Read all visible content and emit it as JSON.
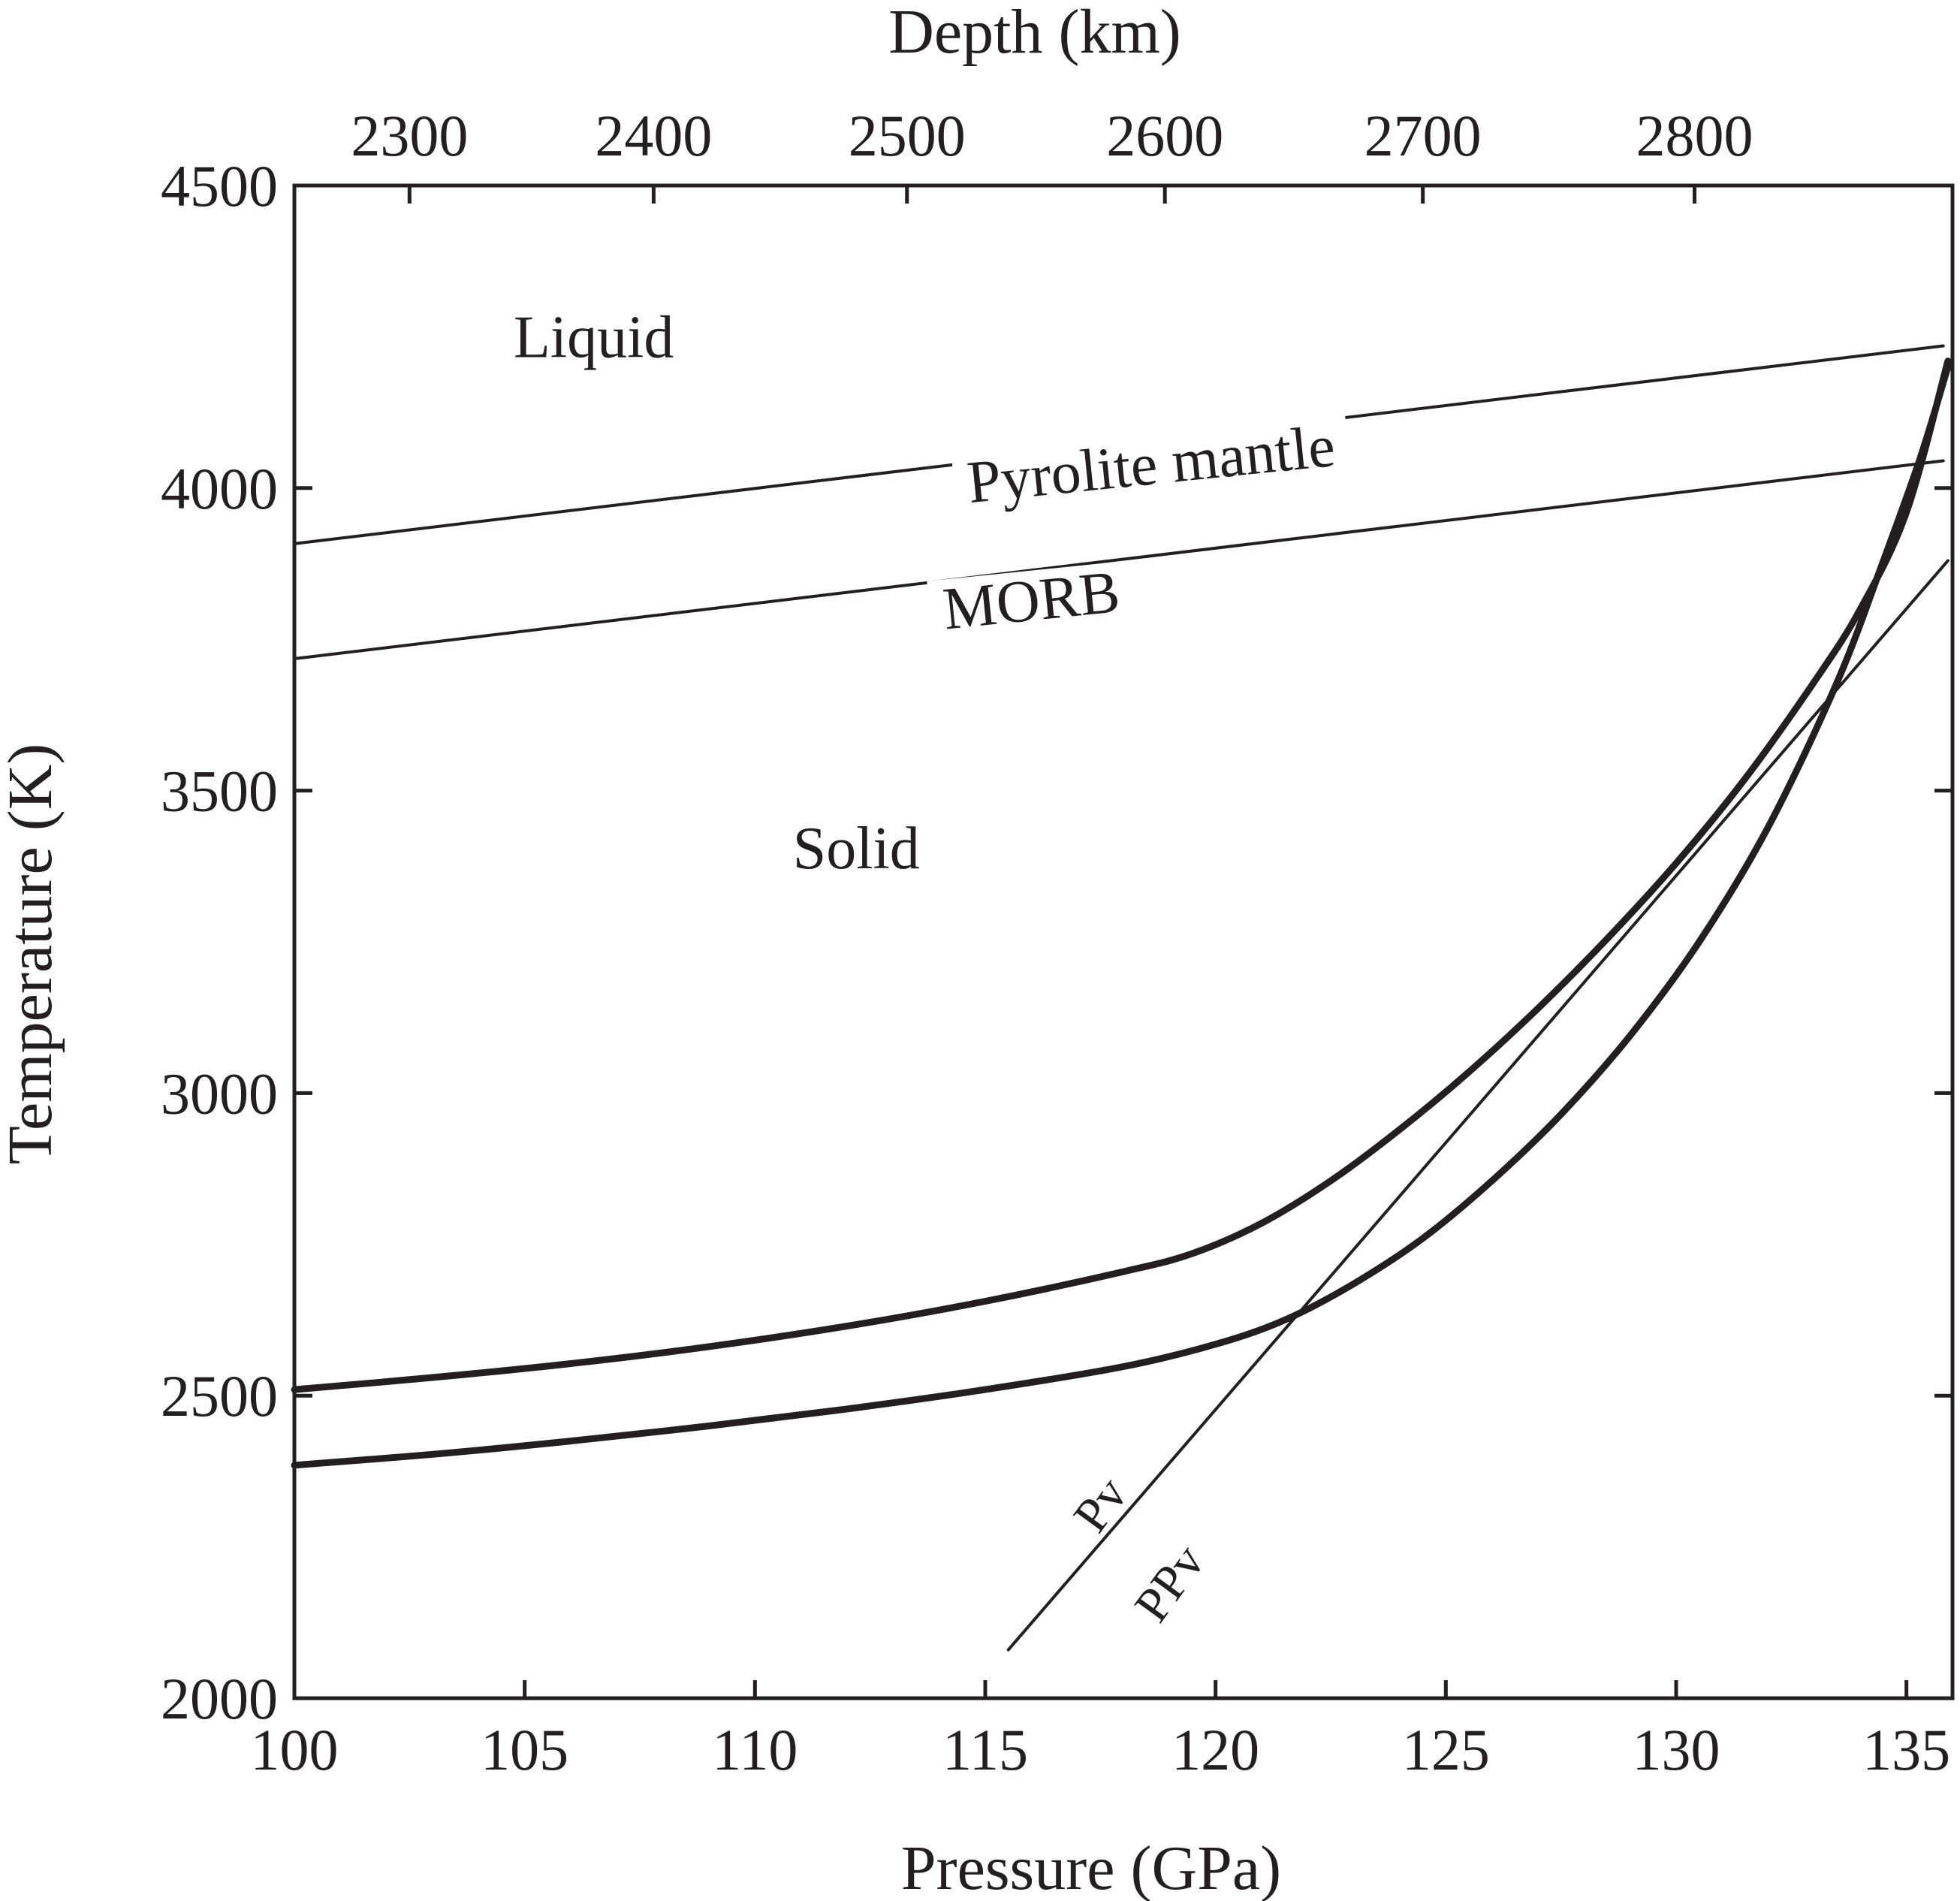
{
  "chart_data": {
    "type": "line",
    "xlabel": "Pressure (GPa)",
    "ylabel": "Temperature (K)",
    "x2label": "Depth (km)",
    "xlim": [
      100,
      136
    ],
    "ylim": [
      2000,
      4500
    ],
    "x_ticks": [
      100,
      105,
      110,
      115,
      120,
      125,
      130,
      135
    ],
    "y_ticks": [
      2000,
      2500,
      3000,
      3500,
      4000,
      4500
    ],
    "x2_ticks": [
      {
        "depth": 2300,
        "pressure": 102.5
      },
      {
        "depth": 2400,
        "pressure": 107.8
      },
      {
        "depth": 2500,
        "pressure": 113.3
      },
      {
        "depth": 2600,
        "pressure": 118.9
      },
      {
        "depth": 2700,
        "pressure": 124.5
      },
      {
        "depth": 2800,
        "pressure": 130.4
      }
    ],
    "grid": false,
    "regions": [
      {
        "label": "Liquid",
        "x": 106.5,
        "y": 4250
      },
      {
        "label": "Solid",
        "x": 112.2,
        "y": 3405
      }
    ],
    "series": [
      {
        "name": "Pyrolite mantle",
        "style": "thin",
        "x": [
          100,
          135.8
        ],
        "y": [
          3908,
          4235
        ],
        "label_at": [
          118.6,
          4040
        ],
        "label_angle": -5.8
      },
      {
        "name": "MORB",
        "style": "thin",
        "x": [
          100,
          135.8
        ],
        "y": [
          3718,
          4045
        ],
        "label_at": [
          116.0,
          3815
        ],
        "label_angle": -5.8
      },
      {
        "name": "",
        "style": "thin",
        "x": [
          115.5,
          135.9
        ],
        "y": [
          2080,
          3880
        ]
      },
      {
        "name": "",
        "style": "thick",
        "x": [
          100,
          103,
          106,
          109,
          112,
          115,
          118,
          119.5,
          121,
          122.5,
          124,
          125.5,
          127,
          128.5,
          130,
          131.5,
          133,
          134,
          135,
          135.9
        ],
        "y": [
          2510,
          2530,
          2553,
          2581,
          2615,
          2656,
          2705,
          2735,
          2785,
          2855,
          2940,
          3035,
          3140,
          3255,
          3380,
          3520,
          3680,
          3800,
          3960,
          4210
        ]
      },
      {
        "name": "",
        "style": "thick",
        "x": [
          100,
          103,
          106,
          109,
          112,
          115,
          118,
          120,
          121.5,
          123,
          124.5,
          126,
          127.5,
          129,
          130.5,
          132,
          133.5,
          134.5,
          135.3,
          135.9
        ],
        "y": [
          2385,
          2403,
          2425,
          2450,
          2478,
          2510,
          2548,
          2585,
          2625,
          2685,
          2760,
          2855,
          2965,
          3095,
          3250,
          3440,
          3680,
          3880,
          4050,
          4200
        ]
      }
    ],
    "phase_labels": [
      {
        "label": "Pv",
        "x": 117.5,
        "y": 2320,
        "angle": -54
      },
      {
        "label": "PPv",
        "x": 119.0,
        "y": 2190,
        "angle": -54
      }
    ]
  }
}
